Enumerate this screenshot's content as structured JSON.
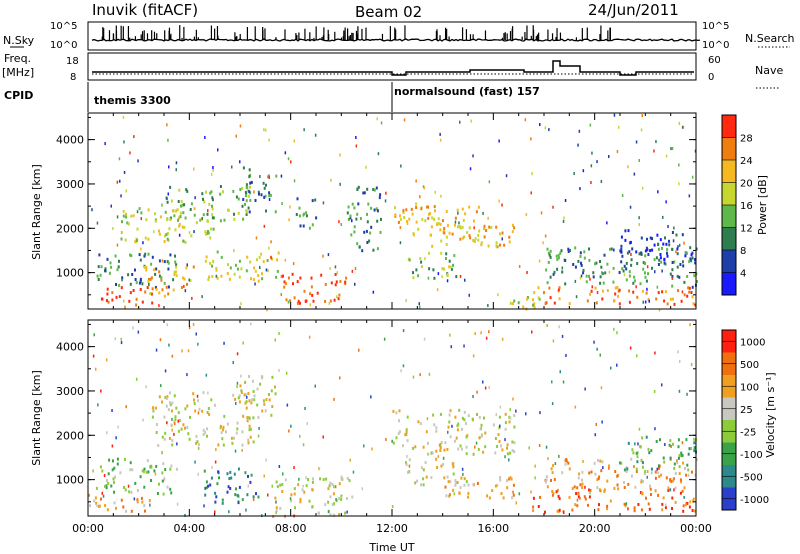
{
  "header": {
    "station": "Inuvik (fitACF)",
    "beam": "Beam 02",
    "date": "24/Jun/2011"
  },
  "status_panel": {
    "nsky_label": "N.Sky",
    "nsky_ticks": [
      "10^5",
      "10^0"
    ],
    "nsearch_label": "N.Search",
    "nsearch_ticks": [
      "10^5",
      "10^0"
    ],
    "freq_label": "Freq.",
    "freq_unit": "[MHz]",
    "freq_ticks": [
      "18",
      "8"
    ],
    "nave_label": "Nave",
    "nave_ticks": [
      "60",
      "0"
    ],
    "cpid_label": "CPID",
    "cpid_segments": [
      {
        "label": "themis 3300",
        "start_hour": 0
      },
      {
        "label": "normalsound (fast) 157",
        "start_hour": 12
      }
    ]
  },
  "chart_data": [
    {
      "type": "heatmap",
      "name": "power",
      "ylabel": "Slant Range [km]",
      "ylim": [
        180,
        4600
      ],
      "yticks": [
        "1000",
        "2000",
        "3000",
        "4000"
      ],
      "xlim": [
        0,
        24
      ],
      "colorbar_label": "Power [dB]",
      "colorbar_ticks": [
        "4",
        "8",
        "12",
        "16",
        "20",
        "24",
        "28"
      ],
      "colorbar_colors": [
        "#1a1aff",
        "#1f3fa8",
        "#2e7d4f",
        "#5fb84a",
        "#c8d630",
        "#f5b820",
        "#f07d10",
        "#ff2a10"
      ],
      "clusters": [
        {
          "t0": 0.0,
          "t1": 2.6,
          "r0": 300,
          "r1": 700,
          "level": 7
        },
        {
          "t0": 0.3,
          "t1": 3.5,
          "r0": 700,
          "r1": 1500,
          "level": 2
        },
        {
          "t0": 1.2,
          "t1": 5.0,
          "r0": 1700,
          "r1": 2500,
          "level": 4
        },
        {
          "t0": 2.2,
          "t1": 4.2,
          "r0": 500,
          "r1": 1200,
          "level": 5
        },
        {
          "t0": 3.0,
          "t1": 6.5,
          "r0": 2200,
          "r1": 3000,
          "level": 3
        },
        {
          "t0": 4.5,
          "t1": 7.5,
          "r0": 800,
          "r1": 1500,
          "level": 4
        },
        {
          "t0": 5.8,
          "t1": 7.4,
          "r0": 2400,
          "r1": 3400,
          "level": 2
        },
        {
          "t0": 7.6,
          "t1": 10.2,
          "r0": 300,
          "r1": 1000,
          "level": 7
        },
        {
          "t0": 8.2,
          "t1": 9.0,
          "r0": 2000,
          "r1": 2800,
          "level": 2
        },
        {
          "t0": 10.2,
          "t1": 11.6,
          "r0": 1500,
          "r1": 3000,
          "level": 2
        },
        {
          "t0": 12.0,
          "t1": 15.4,
          "r0": 1800,
          "r1": 2600,
          "level": 5
        },
        {
          "t0": 13.5,
          "t1": 16.8,
          "r0": 1600,
          "r1": 2200,
          "level": 5
        },
        {
          "t0": 12.5,
          "t1": 14.5,
          "r0": 900,
          "r1": 1500,
          "level": 3
        },
        {
          "t0": 16.5,
          "t1": 18.5,
          "r0": 200,
          "r1": 500,
          "level": 4
        },
        {
          "t0": 17.5,
          "t1": 24.0,
          "r0": 300,
          "r1": 700,
          "level": 6
        },
        {
          "t0": 18.0,
          "t1": 24.0,
          "r0": 700,
          "r1": 1600,
          "level": 2
        },
        {
          "t0": 21.0,
          "t1": 24.0,
          "r0": 1100,
          "r1": 2000,
          "level": 1
        }
      ]
    },
    {
      "type": "heatmap",
      "name": "velocity",
      "ylabel": "Slant Range [km]",
      "ylim": [
        180,
        4600
      ],
      "yticks": [
        "1000",
        "2000",
        "3000",
        "4000"
      ],
      "xlim": [
        0,
        24
      ],
      "xticks": [
        "00:00",
        "04:00",
        "08:00",
        "12:00",
        "16:00",
        "20:00",
        "00:00"
      ],
      "xlabel": "Time UT",
      "colorbar_label": "Velocity [m s⁻¹]",
      "colorbar_ticks": [
        "1000",
        "500",
        "100",
        "25",
        "-25",
        "-100",
        "-500",
        "-1000"
      ],
      "colorbar_colors": [
        "#2a3fcc",
        "#2e8a8a",
        "#3aa34a",
        "#8ccc3a",
        "#c8c8c0",
        "#f0a020",
        "#f07010",
        "#ff2010"
      ],
      "clusters": [
        {
          "t0": 0.0,
          "t1": 2.6,
          "r0": 300,
          "r1": 700,
          "level": 5
        },
        {
          "t0": 0.3,
          "t1": 3.5,
          "r0": 700,
          "r1": 1500,
          "level": 3
        },
        {
          "t0": 2.5,
          "t1": 6.5,
          "r0": 1800,
          "r1": 3000,
          "level": 4
        },
        {
          "t0": 4.5,
          "t1": 6.8,
          "r0": 500,
          "r1": 1300,
          "level": 1
        },
        {
          "t0": 5.8,
          "t1": 7.4,
          "r0": 2400,
          "r1": 3400,
          "level": 4
        },
        {
          "t0": 7.2,
          "t1": 10.4,
          "r0": 200,
          "r1": 1100,
          "level": 4
        },
        {
          "t0": 12.0,
          "t1": 16.8,
          "r0": 1600,
          "r1": 2600,
          "level": 4
        },
        {
          "t0": 12.5,
          "t1": 15.0,
          "r0": 900,
          "r1": 1500,
          "level": 4
        },
        {
          "t0": 14.0,
          "t1": 17.0,
          "r0": 600,
          "r1": 1100,
          "level": 5
        },
        {
          "t0": 17.5,
          "t1": 24.0,
          "r0": 300,
          "r1": 800,
          "level": 6
        },
        {
          "t0": 18.0,
          "t1": 24.0,
          "r0": 800,
          "r1": 1500,
          "level": 5
        },
        {
          "t0": 21.0,
          "t1": 24.0,
          "r0": 1200,
          "r1": 2000,
          "level": 2
        }
      ]
    }
  ]
}
